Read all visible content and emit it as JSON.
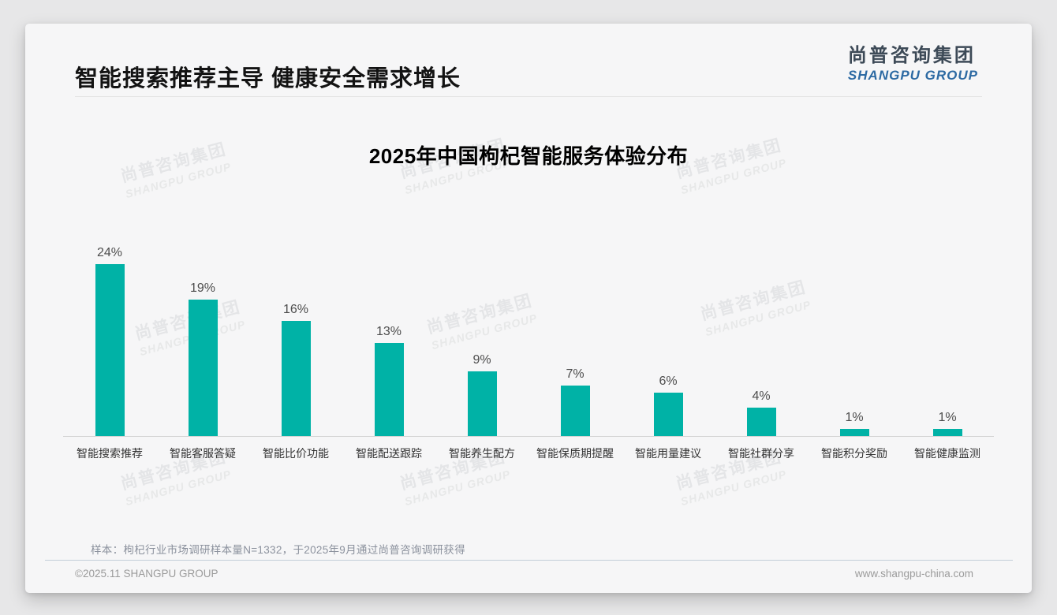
{
  "page": {
    "header_title": "智能搜索推荐主导 健康安全需求增长",
    "logo": {
      "cn": "尚普咨询集团",
      "en": "SHANGPU GROUP"
    },
    "watermark": {
      "cn": "尚普咨询集团",
      "en": "SHANGPU GROUP"
    },
    "footer": {
      "note": "样本：枸杞行业市场调研样本量N=1332，于2025年9月通过尚普咨询调研获得",
      "copyright": "©2025.11 SHANGPU GROUP",
      "website": "www.shangpu-china.com"
    },
    "colors": {
      "bar": "#00b2a6",
      "logo_en_blue": "#2d6aa3",
      "footer_divider": "#c3cdd9"
    }
  },
  "chart_data": {
    "type": "bar",
    "title": "2025年中国枸杞智能服务体验分布",
    "categories": [
      "智能搜索推荐",
      "智能客服答疑",
      "智能比价功能",
      "智能配送跟踪",
      "智能养生配方",
      "智能保质期提醒",
      "智能用量建议",
      "智能社群分享",
      "智能积分奖励",
      "智能健康监测"
    ],
    "values": [
      24,
      19,
      16,
      13,
      9,
      7,
      6,
      4,
      1,
      1
    ],
    "unit": "%",
    "value_label_format": "{v}%",
    "xlabel": "",
    "ylabel": "",
    "ylim": [
      0,
      25
    ],
    "grid": false,
    "legend": "none",
    "bar_color": "#00b2a6",
    "value_labels_position": "above bars"
  }
}
